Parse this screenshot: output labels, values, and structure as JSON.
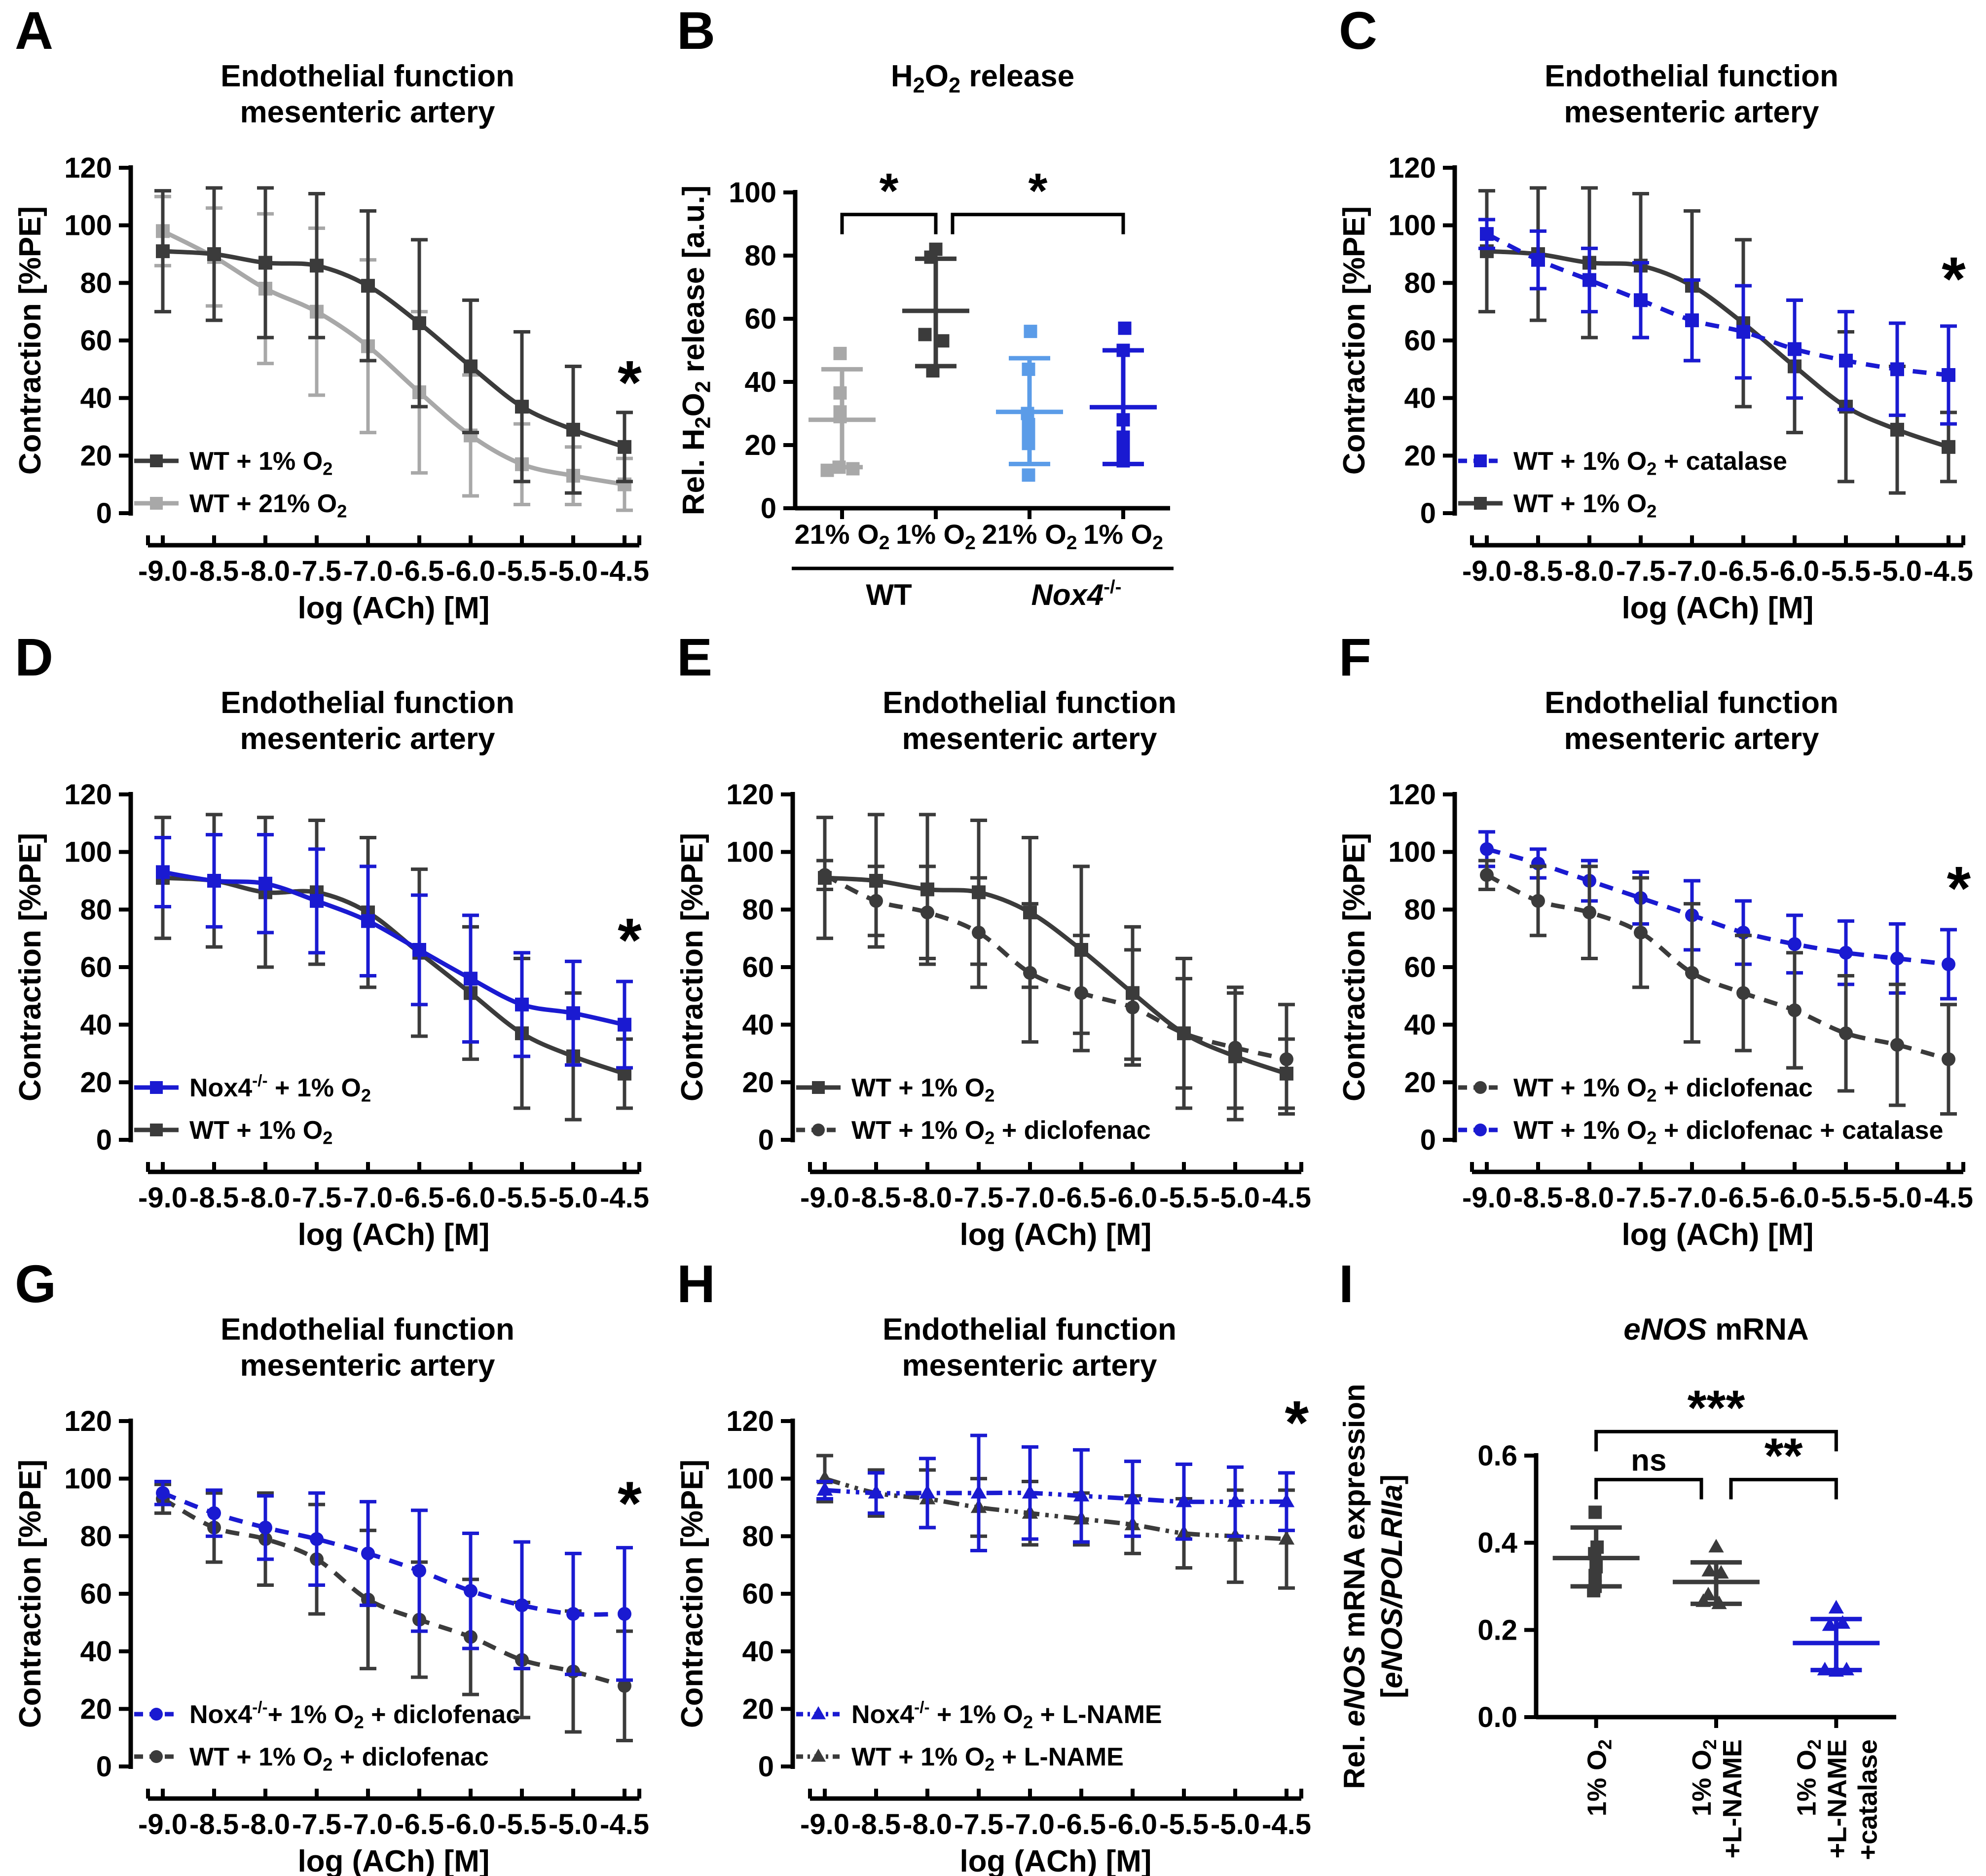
{
  "figure": {
    "background": "#ffffff",
    "colors": {
      "dark_gray": "#3b3b3b",
      "light_gray": "#a8a8a8",
      "blue": "#1a1ad1",
      "light_blue": "#5b9ce8",
      "text": "#000000"
    }
  },
  "chart_data": [
    {
      "panel": "A",
      "type": "line",
      "title": "Endothelial function\nmesenteric artery",
      "xlabel": "log (ACh) [M]",
      "ylabel": "Contraction [%PE]",
      "xticklabels": [
        "-9.0",
        "-8.5",
        "-8.0",
        "-7.5",
        "-7.0",
        "-6.5",
        "-6.0",
        "-5.5",
        "-5.0",
        "-4.5"
      ],
      "ylim": [
        0,
        120
      ],
      "yticks": [
        0,
        20,
        40,
        60,
        80,
        100,
        120
      ],
      "star": {
        "xi": 9.1,
        "y": 38
      },
      "series": [
        {
          "name": "WT + 1% O_{2}",
          "color": "#3b3b3b",
          "marker": "square",
          "line": "solid",
          "values": [
            91,
            90,
            87,
            86,
            79,
            66,
            51,
            37,
            29,
            23
          ],
          "err": [
            21,
            23,
            26,
            25,
            26,
            29,
            23,
            26,
            22,
            12
          ]
        },
        {
          "name": "WT + 21% O_{2}",
          "color": "#a8a8a8",
          "marker": "square",
          "line": "solid",
          "values": [
            98,
            89,
            78,
            70,
            58,
            42,
            27,
            17,
            13,
            10
          ],
          "err": [
            12,
            17,
            26,
            29,
            30,
            28,
            21,
            14,
            10,
            9
          ]
        }
      ]
    },
    {
      "panel": "B",
      "type": "scatter",
      "title": "H_{2}O_{2} release",
      "ylabel": "Rel. H_{2}O_{2} release [a.u.]",
      "ylim": [
        0,
        100
      ],
      "yticks": [
        0,
        20,
        40,
        60,
        80,
        100
      ],
      "groups": [
        {
          "label": "21% O_{2}",
          "color": "#a8a8a8",
          "marker": "square",
          "mean": 28,
          "lo": 13,
          "hi": 44,
          "points": [
            [
              -30,
              12
            ],
            [
              22,
              12.5
            ],
            [
              -6,
              13
            ],
            [
              -4,
              29
            ],
            [
              -4,
              30.5
            ],
            [
              -4,
              36.5
            ],
            [
              -4,
              49
            ]
          ]
        },
        {
          "label": "1% O_{2}",
          "color": "#3b3b3b",
          "marker": "square",
          "mean": 62.5,
          "lo": 45,
          "hi": 79,
          "points": [
            [
              0,
              82
            ],
            [
              -10,
              79.5
            ],
            [
              -22,
              55
            ],
            [
              14,
              53
            ],
            [
              -6,
              43.5
            ]
          ]
        },
        {
          "label": "21% O_{2}",
          "color": "#5b9ce8",
          "marker": "square",
          "mean": 30.5,
          "lo": 14,
          "hi": 47.5,
          "points": [
            [
              2,
              56
            ],
            [
              -2,
              44
            ],
            [
              -4,
              30
            ],
            [
              -2,
              26.5
            ],
            [
              -2,
              24
            ],
            [
              -2,
              20.5
            ],
            [
              -2,
              10.5
            ]
          ]
        },
        {
          "label": "1% O_{2}",
          "color": "#1a1ad1",
          "marker": "square",
          "mean": 32,
          "lo": 14,
          "hi": 50,
          "points": [
            [
              3,
              57
            ],
            [
              0,
              50
            ],
            [
              0,
              28
            ],
            [
              0,
              22.5
            ],
            [
              0,
              21
            ],
            [
              0,
              18
            ],
            [
              0,
              15
            ]
          ]
        }
      ],
      "group_spans": [
        {
          "from": 0,
          "to": 1,
          "label": "WT"
        },
        {
          "from": 2,
          "to": 3,
          "label": "~{Nox4}^{-/-}"
        }
      ],
      "brackets": [
        {
          "from": 0,
          "to": 1,
          "y": 93,
          "label": "*"
        },
        {
          "from": 1,
          "to": 3,
          "y": 93,
          "label": "*",
          "fromOff": 34
        }
      ]
    },
    {
      "panel": "C",
      "type": "line",
      "title": "Endothelial function\nmesenteric artery",
      "xlabel": "log (ACh) [M]",
      "ylabel": "Contraction [%PE]",
      "xticklabels": [
        "-9.0",
        "-8.5",
        "-8.0",
        "-7.5",
        "-7.0",
        "-6.5",
        "-6.0",
        "-5.5",
        "-5.0",
        "-4.5"
      ],
      "ylim": [
        0,
        120
      ],
      "yticks": [
        0,
        20,
        40,
        60,
        80,
        100,
        120
      ],
      "star": {
        "xi": 9.1,
        "y": 74
      },
      "series": [
        {
          "name": "WT + 1% O_{2} + catalase",
          "color": "#1a1ad1",
          "marker": "square",
          "line": "dashed",
          "values": [
            97,
            88,
            81,
            74,
            67,
            63,
            57,
            53,
            50,
            48
          ],
          "err": [
            5,
            10,
            11,
            13,
            14,
            16,
            17,
            17,
            16,
            17
          ]
        },
        {
          "name": "WT + 1% O_{2}",
          "color": "#3b3b3b",
          "marker": "square",
          "line": "solid",
          "values": [
            91,
            90,
            87,
            86,
            79,
            66,
            51,
            37,
            29,
            23
          ],
          "err": [
            21,
            23,
            26,
            25,
            26,
            29,
            23,
            26,
            22,
            12
          ]
        }
      ]
    },
    {
      "panel": "D",
      "type": "line",
      "title": "Endothelial function\nmesenteric artery",
      "xlabel": "log (ACh) [M]",
      "ylabel": "Contraction [%PE]",
      "xticklabels": [
        "-9.0",
        "-8.5",
        "-8.0",
        "-7.5",
        "-7.0",
        "-6.5",
        "-6.0",
        "-5.5",
        "-5.0",
        "-4.5"
      ],
      "ylim": [
        0,
        120
      ],
      "yticks": [
        0,
        20,
        40,
        60,
        80,
        100,
        120
      ],
      "star": {
        "xi": 9.1,
        "y": 62
      },
      "series": [
        {
          "name": "Nox4^{-/-} + 1% O_{2}",
          "color": "#1a1ad1",
          "marker": "square",
          "line": "solid",
          "values": [
            93,
            90,
            89,
            83,
            76,
            66,
            56,
            47,
            44,
            40
          ],
          "err": [
            12,
            16,
            17,
            18,
            19,
            19,
            22,
            18,
            18,
            15
          ]
        },
        {
          "name": "WT + 1% O_{2}",
          "color": "#3b3b3b",
          "marker": "square",
          "line": "solid",
          "values": [
            91,
            90,
            86,
            86,
            79,
            65,
            51,
            37,
            29,
            23
          ],
          "err": [
            21,
            23,
            26,
            25,
            26,
            29,
            23,
            26,
            22,
            12
          ]
        }
      ]
    },
    {
      "panel": "E",
      "type": "line",
      "title": "Endothelial function\nmesenteric artery",
      "xlabel": "log (ACh) [M]",
      "ylabel": "Contraction [%PE]",
      "xticklabels": [
        "-9.0",
        "-8.5",
        "-8.0",
        "-7.5",
        "-7.0",
        "-6.5",
        "-6.0",
        "-5.5",
        "-5.0",
        "-4.5"
      ],
      "ylim": [
        0,
        120
      ],
      "yticks": [
        0,
        20,
        40,
        60,
        80,
        100,
        120
      ],
      "star": null,
      "series": [
        {
          "name": "WT + 1% O_{2}",
          "color": "#3b3b3b",
          "marker": "square",
          "line": "solid",
          "values": [
            91,
            90,
            87,
            86,
            79,
            66,
            51,
            37,
            29,
            23
          ],
          "err": [
            21,
            23,
            26,
            25,
            26,
            29,
            23,
            26,
            22,
            12
          ]
        },
        {
          "name": "WT + 1% O_{2} + diclofenac",
          "color": "#3b3b3b",
          "marker": "circle",
          "line": "dashed",
          "values": [
            92,
            83,
            79,
            72,
            58,
            51,
            46,
            37,
            32,
            28
          ],
          "err": [
            5,
            12,
            16,
            19,
            24,
            20,
            20,
            19,
            21,
            19
          ]
        }
      ]
    },
    {
      "panel": "F",
      "type": "line",
      "title": "Endothelial function\nmesenteric artery",
      "xlabel": "log (ACh) [M]",
      "ylabel": "Contraction [%PE]",
      "xticklabels": [
        "-9.0",
        "-8.5",
        "-8.0",
        "-7.5",
        "-7.0",
        "-6.5",
        "-6.0",
        "-5.5",
        "-5.0",
        "-4.5"
      ],
      "ylim": [
        0,
        120
      ],
      "yticks": [
        0,
        20,
        40,
        60,
        80,
        100,
        120
      ],
      "star": {
        "xi": 9.2,
        "y": 80
      },
      "series": [
        {
          "name": "WT + 1% O_{2} + diclofenac",
          "color": "#3b3b3b",
          "marker": "circle",
          "line": "dashed",
          "values": [
            92,
            83,
            79,
            72,
            58,
            51,
            45,
            37,
            33,
            28
          ],
          "err": [
            5,
            12,
            16,
            19,
            24,
            20,
            20,
            20,
            21,
            19
          ]
        },
        {
          "name": "WT + 1% O_{2} + diclofenac + catalase",
          "color": "#1a1ad1",
          "marker": "circle",
          "line": "dashed",
          "values": [
            101,
            96,
            90,
            84,
            78,
            72,
            68,
            65,
            63,
            61
          ],
          "err": [
            6,
            5,
            7,
            9,
            12,
            11,
            10,
            11,
            12,
            12
          ]
        }
      ]
    },
    {
      "panel": "G",
      "type": "line",
      "title": "Endothelial function\nmesenteric artery",
      "xlabel": "log (ACh) [M]",
      "ylabel": "Contraction [%PE]",
      "xticklabels": [
        "-9.0",
        "-8.5",
        "-8.0",
        "-7.5",
        "-7.0",
        "-6.5",
        "-6.0",
        "-5.5",
        "-5.0",
        "-4.5"
      ],
      "ylim": [
        0,
        120
      ],
      "yticks": [
        0,
        20,
        40,
        60,
        80,
        100,
        120
      ],
      "star": {
        "xi": 9.1,
        "y": 84
      },
      "series": [
        {
          "name": "Nox4^{-/-}+ 1% O_{2} + diclofenac",
          "color": "#1a1ad1",
          "marker": "circle",
          "line": "dashed",
          "values": [
            95,
            88,
            83,
            79,
            74,
            68,
            61,
            56,
            53,
            53
          ],
          "err": [
            4,
            8,
            11,
            16,
            18,
            21,
            20,
            22,
            21,
            23
          ]
        },
        {
          "name": "WT + 1% O_{2} + diclofenac",
          "color": "#3b3b3b",
          "marker": "circle",
          "line": "dashed",
          "values": [
            93,
            83,
            79,
            72,
            58,
            51,
            45,
            37,
            33,
            28
          ],
          "err": [
            5,
            12,
            16,
            19,
            24,
            20,
            20,
            20,
            21,
            19
          ]
        }
      ]
    },
    {
      "panel": "H",
      "type": "line",
      "title": "Endothelial function\nmesenteric artery",
      "xlabel": "log (ACh) [M]",
      "ylabel": "Contraction [%PE]",
      "xticklabels": [
        "-9.0",
        "-8.5",
        "-8.0",
        "-7.5",
        "-7.0",
        "-6.5",
        "-6.0",
        "-5.5",
        "-5.0",
        "-4.5"
      ],
      "ylim": [
        0,
        120
      ],
      "yticks": [
        0,
        20,
        40,
        60,
        80,
        100,
        120
      ],
      "star": {
        "xi": 9.2,
        "y": 112
      },
      "series": [
        {
          "name": "Nox4^{-/-} + 1% O_{2} + L-NAME",
          "color": "#1a1ad1",
          "marker": "triangle",
          "line": "dashdot",
          "values": [
            96,
            95,
            95,
            95,
            95,
            94,
            93,
            92,
            92,
            92
          ],
          "err": [
            3,
            7,
            12,
            20,
            16,
            16,
            13,
            13,
            12,
            10
          ]
        },
        {
          "name": "WT + 1% O_{2} + L-NAME",
          "color": "#3b3b3b",
          "marker": "triangle",
          "line": "dashdot",
          "values": [
            100,
            95,
            93,
            90,
            88,
            86,
            84,
            81,
            80,
            79
          ],
          "err": [
            8,
            8,
            10,
            10,
            11,
            9,
            10,
            12,
            16,
            17
          ]
        }
      ]
    },
    {
      "panel": "I",
      "type": "scatter",
      "title": "~{eNOS} mRNA",
      "ylabel": "Rel. ~{eNOS} mRNA expression\n[~{eNOS/POLRIIa}]",
      "ylim": [
        0,
        0.6
      ],
      "yticks": [
        0.0,
        0.2,
        0.4,
        0.6
      ],
      "tick_decimals": 1,
      "rotated_labels": true,
      "groups": [
        {
          "label": "1% O_{2}",
          "color": "#3b3b3b",
          "marker": "square",
          "mean": 0.365,
          "lo": 0.3,
          "hi": 0.435,
          "points": [
            [
              -2,
              0.47
            ],
            [
              2,
              0.39
            ],
            [
              -3,
              0.375
            ],
            [
              0,
              0.345
            ],
            [
              -2,
              0.325
            ],
            [
              -2,
              0.3
            ],
            [
              -5,
              0.29
            ]
          ]
        },
        {
          "label": "1% O_{2}\n+L-NAME",
          "color": "#3b3b3b",
          "marker": "triangle",
          "mean": 0.31,
          "lo": 0.26,
          "hi": 0.355,
          "points": [
            [
              0,
              0.39
            ],
            [
              -14,
              0.335
            ],
            [
              10,
              0.33
            ],
            [
              -16,
              0.28
            ],
            [
              -26,
              0.265
            ],
            [
              6,
              0.26
            ]
          ]
        },
        {
          "label": "1% O_{2}\n+L-NAME\n+catalase",
          "color": "#1a1ad1",
          "marker": "triangle",
          "mean": 0.17,
          "lo": 0.108,
          "hi": 0.225,
          "points": [
            [
              0,
              0.25
            ],
            [
              -13,
              0.21
            ],
            [
              13,
              0.215
            ],
            [
              -23,
              0.108
            ],
            [
              0,
              0.105
            ],
            [
              21,
              0.108
            ]
          ]
        }
      ],
      "group_spans": [],
      "brackets": [
        {
          "from": 0,
          "to": 1,
          "y": 0.545,
          "label": "ns",
          "toOff": -30
        },
        {
          "from": 1,
          "to": 2,
          "y": 0.545,
          "label": "**",
          "fromOff": 30
        },
        {
          "from": 0,
          "to": 2,
          "y": 0.655,
          "label": "***"
        }
      ]
    }
  ]
}
